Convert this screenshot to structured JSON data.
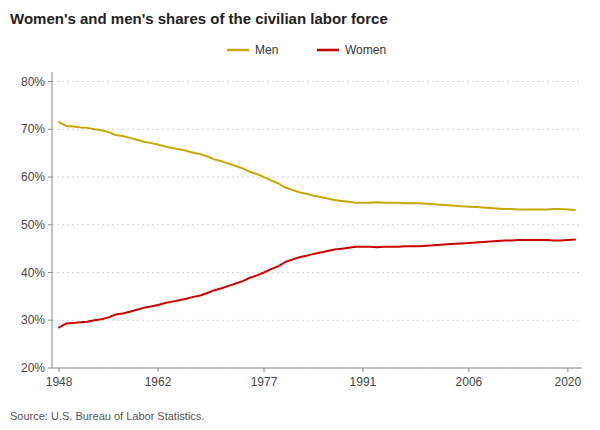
{
  "chart_data": {
    "type": "line",
    "title": "Women's and men's shares of the civilian labor force",
    "source": "Source: U.S. Bureau of Labor Statistics.",
    "x": [
      1948,
      1949,
      1950,
      1951,
      1952,
      1953,
      1954,
      1955,
      1956,
      1957,
      1958,
      1959,
      1960,
      1961,
      1962,
      1963,
      1964,
      1965,
      1966,
      1967,
      1968,
      1969,
      1970,
      1971,
      1972,
      1973,
      1974,
      1975,
      1976,
      1977,
      1978,
      1979,
      1980,
      1981,
      1982,
      1983,
      1984,
      1985,
      1986,
      1987,
      1988,
      1989,
      1990,
      1991,
      1992,
      1993,
      1994,
      1995,
      1996,
      1997,
      1998,
      1999,
      2000,
      2001,
      2002,
      2003,
      2004,
      2005,
      2006,
      2007,
      2008,
      2009,
      2010,
      2011,
      2012,
      2013,
      2014,
      2015,
      2016,
      2017,
      2018,
      2019,
      2020,
      2021
    ],
    "series": [
      {
        "name": "Men",
        "color": "#C8A800",
        "values": [
          0.715,
          0.707,
          0.706,
          0.704,
          0.703,
          0.7,
          0.698,
          0.694,
          0.688,
          0.686,
          0.682,
          0.678,
          0.674,
          0.671,
          0.668,
          0.664,
          0.661,
          0.658,
          0.655,
          0.651,
          0.648,
          0.643,
          0.637,
          0.633,
          0.628,
          0.623,
          0.618,
          0.611,
          0.606,
          0.6,
          0.593,
          0.587,
          0.578,
          0.573,
          0.568,
          0.565,
          0.561,
          0.558,
          0.555,
          0.552,
          0.55,
          0.548,
          0.546,
          0.546,
          0.546,
          0.547,
          0.546,
          0.546,
          0.546,
          0.545,
          0.545,
          0.545,
          0.544,
          0.543,
          0.542,
          0.541,
          0.54,
          0.539,
          0.538,
          0.537,
          0.536,
          0.535,
          0.534,
          0.533,
          0.533,
          0.532,
          0.532,
          0.532,
          0.532,
          0.532,
          0.533,
          0.533,
          0.532,
          0.531
        ]
      },
      {
        "name": "Women",
        "color": "#CC0000",
        "values": [
          0.285,
          0.293,
          0.294,
          0.296,
          0.297,
          0.3,
          0.302,
          0.306,
          0.312,
          0.314,
          0.318,
          0.322,
          0.326,
          0.329,
          0.332,
          0.336,
          0.339,
          0.342,
          0.345,
          0.349,
          0.352,
          0.357,
          0.363,
          0.367,
          0.372,
          0.377,
          0.382,
          0.389,
          0.394,
          0.4,
          0.407,
          0.413,
          0.422,
          0.427,
          0.432,
          0.435,
          0.439,
          0.442,
          0.445,
          0.448,
          0.45,
          0.452,
          0.454,
          0.454,
          0.454,
          0.453,
          0.454,
          0.454,
          0.454,
          0.455,
          0.455,
          0.455,
          0.456,
          0.457,
          0.458,
          0.459,
          0.46,
          0.461,
          0.462,
          0.463,
          0.464,
          0.465,
          0.466,
          0.467,
          0.467,
          0.468,
          0.468,
          0.468,
          0.468,
          0.468,
          0.467,
          0.467,
          0.468,
          0.469
        ]
      }
    ],
    "xlim": [
      1947,
      2022
    ],
    "xticks": [
      1948,
      1962,
      1977,
      1991,
      2006,
      2020
    ],
    "ylim": [
      0.2,
      0.82
    ],
    "yticks": [
      {
        "value": 0.2,
        "label": "20%"
      },
      {
        "value": 0.3,
        "label": "30%"
      },
      {
        "value": 0.4,
        "label": "40%"
      },
      {
        "value": 0.5,
        "label": "50%"
      },
      {
        "value": 0.6,
        "label": "60%"
      },
      {
        "value": 0.7,
        "label": "70%"
      },
      {
        "value": 0.8,
        "label": "80%"
      }
    ],
    "grid": true,
    "legend": "top"
  }
}
